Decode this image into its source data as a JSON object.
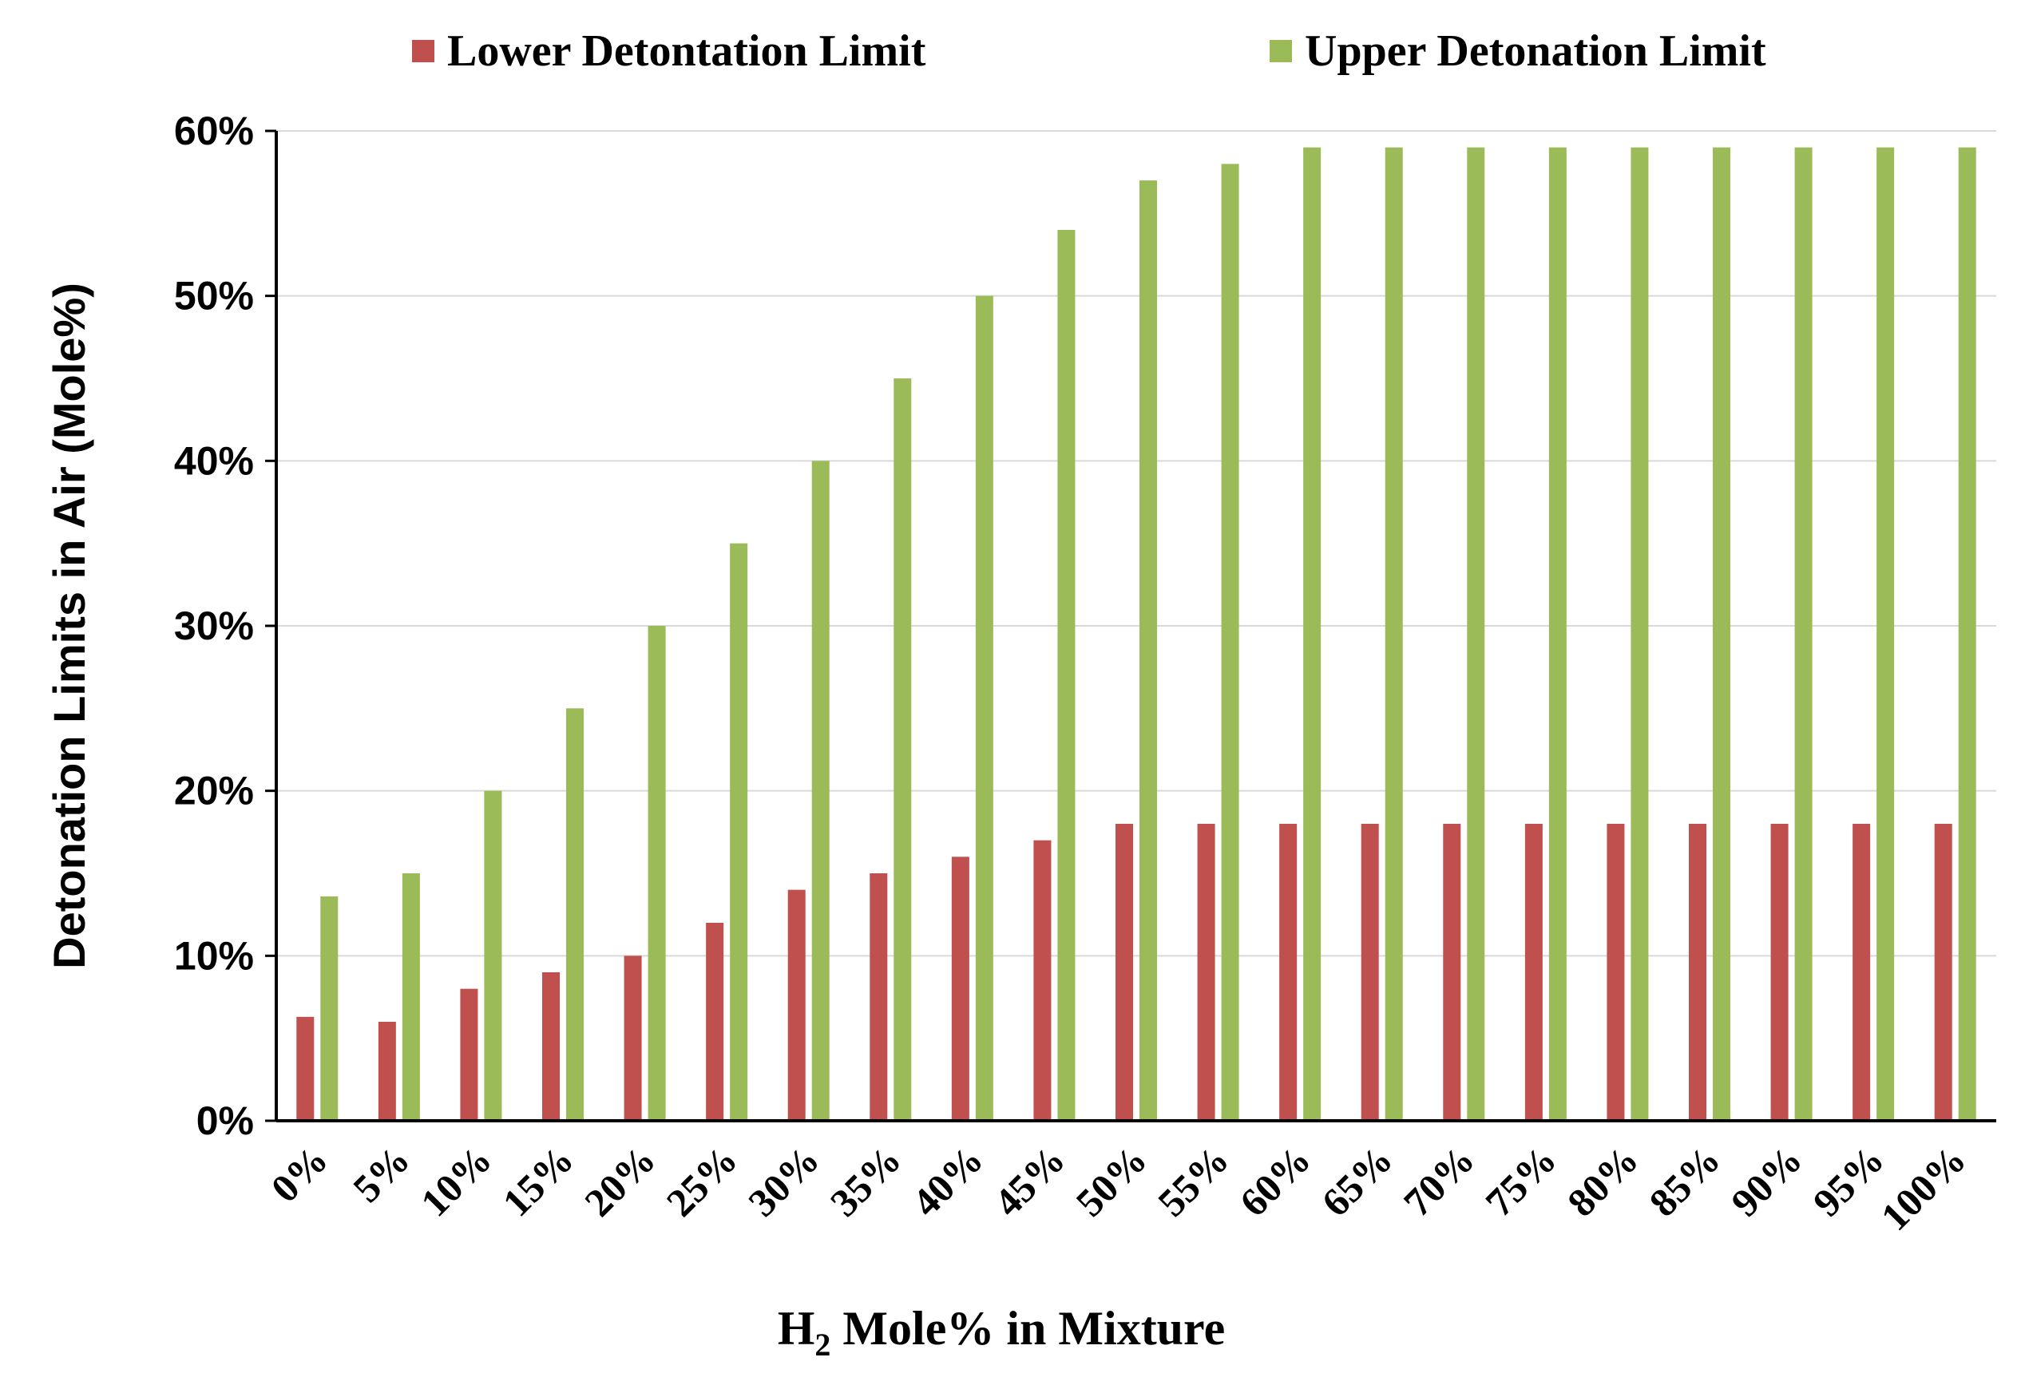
{
  "chart_data": {
    "type": "bar",
    "title": "",
    "xlabel": "H₂ Mole% in Mixture",
    "xlabel_main": "H",
    "xlabel_sub": "2",
    "xlabel_rest": " Mole% in Mixture",
    "ylabel": "Detonation Limits in Air (Mole%)",
    "ylim": [
      0,
      60
    ],
    "yticks": [
      "0%",
      "10%",
      "20%",
      "30%",
      "40%",
      "50%",
      "60%"
    ],
    "grid": true,
    "legend_position": "top",
    "categories": [
      "0%",
      "5%",
      "10%",
      "15%",
      "20%",
      "25%",
      "30%",
      "35%",
      "40%",
      "45%",
      "50%",
      "55%",
      "60%",
      "65%",
      "70%",
      "75%",
      "80%",
      "85%",
      "90%",
      "95%",
      "100%"
    ],
    "series": [
      {
        "name": "Lower Detontation Limit",
        "color": "#c0504d",
        "values": [
          6.3,
          6.0,
          8.0,
          9.0,
          10.0,
          12.0,
          14.0,
          15.0,
          16.0,
          17.0,
          18.0,
          18.0,
          18.0,
          18.0,
          18.0,
          18.0,
          18.0,
          18.0,
          18.0,
          18.0,
          18.0
        ]
      },
      {
        "name": "Upper Detonation Limit",
        "color": "#9bbb59",
        "values": [
          13.6,
          15.0,
          20.0,
          25.0,
          30.0,
          35.0,
          40.0,
          45.0,
          50.0,
          54.0,
          57.0,
          58.0,
          59.0,
          59.0,
          59.0,
          59.0,
          59.0,
          59.0,
          59.0,
          59.0,
          59.0
        ]
      }
    ]
  }
}
